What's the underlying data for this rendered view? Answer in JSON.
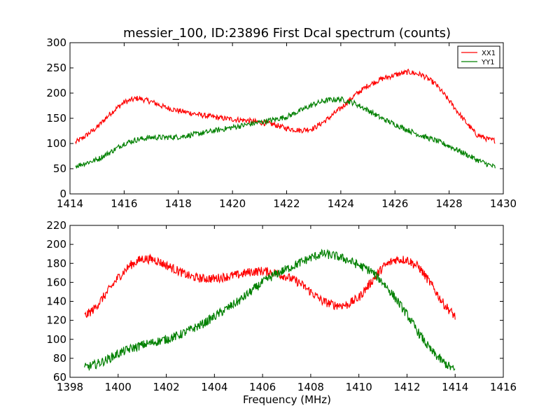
{
  "chart_data": [
    {
      "type": "line",
      "title": "messier_100, ID:23896 First Dcal spectrum (counts)",
      "xlabel": "",
      "ylabel": "",
      "xlim": [
        1414,
        1430
      ],
      "ylim": [
        0,
        300
      ],
      "xticks": [
        1414,
        1416,
        1418,
        1420,
        1422,
        1424,
        1426,
        1428,
        1430
      ],
      "yticks": [
        0,
        50,
        100,
        150,
        200,
        250,
        300
      ],
      "legend": "top-right",
      "grid": false,
      "series": [
        {
          "name": "XX1",
          "color": "#ff0000",
          "x": [
            1414.2,
            1414.5,
            1415.0,
            1415.5,
            1416.0,
            1416.5,
            1417.0,
            1417.5,
            1418.0,
            1418.5,
            1419.0,
            1419.5,
            1420.0,
            1420.5,
            1421.0,
            1421.5,
            1422.0,
            1422.5,
            1423.0,
            1423.5,
            1424.0,
            1424.5,
            1425.0,
            1425.5,
            1426.0,
            1426.5,
            1427.0,
            1427.5,
            1428.0,
            1428.5,
            1429.0,
            1429.5,
            1429.7
          ],
          "y": [
            102,
            112,
            132,
            160,
            182,
            190,
            183,
            172,
            165,
            160,
            155,
            151,
            148,
            146,
            142,
            138,
            130,
            126,
            130,
            148,
            170,
            195,
            215,
            228,
            236,
            242,
            236,
            218,
            185,
            150,
            118,
            107,
            106
          ]
        },
        {
          "name": "YY1",
          "color": "#008000",
          "x": [
            1414.2,
            1414.5,
            1415.0,
            1415.5,
            1416.0,
            1416.5,
            1417.0,
            1417.5,
            1418.0,
            1418.5,
            1419.0,
            1419.5,
            1420.0,
            1420.5,
            1421.0,
            1421.5,
            1422.0,
            1422.5,
            1423.0,
            1423.5,
            1424.0,
            1424.5,
            1425.0,
            1425.5,
            1426.0,
            1426.5,
            1427.0,
            1427.5,
            1428.0,
            1428.5,
            1429.0,
            1429.5,
            1429.7
          ],
          "y": [
            55,
            60,
            68,
            83,
            100,
            108,
            112,
            112,
            113,
            117,
            122,
            127,
            132,
            137,
            142,
            147,
            153,
            165,
            178,
            186,
            188,
            180,
            166,
            150,
            138,
            126,
            115,
            106,
            95,
            82,
            68,
            57,
            53
          ]
        }
      ]
    },
    {
      "type": "line",
      "title": "",
      "xlabel": "Frequency (MHz)",
      "ylabel": "",
      "xlim": [
        1398,
        1416
      ],
      "ylim": [
        60,
        220
      ],
      "xticks": [
        1398,
        1400,
        1402,
        1404,
        1406,
        1408,
        1410,
        1412,
        1414,
        1416
      ],
      "yticks": [
        60,
        80,
        100,
        120,
        140,
        160,
        180,
        200,
        220
      ],
      "grid": false,
      "series": [
        {
          "name": "XX1",
          "color": "#ff0000",
          "x": [
            1398.6,
            1399.0,
            1399.5,
            1400.0,
            1400.5,
            1401.0,
            1401.5,
            1402.0,
            1402.5,
            1403.0,
            1403.5,
            1404.0,
            1404.5,
            1405.0,
            1405.5,
            1406.0,
            1406.5,
            1407.0,
            1407.5,
            1408.0,
            1408.5,
            1409.0,
            1409.5,
            1410.0,
            1410.5,
            1411.0,
            1411.5,
            1412.0,
            1412.5,
            1413.0,
            1413.5,
            1414.0
          ],
          "y": [
            124,
            132,
            148,
            165,
            178,
            185,
            184,
            178,
            172,
            166,
            164,
            164,
            166,
            168,
            171,
            172,
            170,
            166,
            160,
            150,
            140,
            136,
            136,
            144,
            160,
            176,
            184,
            184,
            176,
            158,
            138,
            124
          ]
        },
        {
          "name": "YY1",
          "color": "#008000",
          "x": [
            1398.6,
            1399.0,
            1399.5,
            1400.0,
            1400.5,
            1401.0,
            1401.5,
            1402.0,
            1402.5,
            1403.0,
            1403.5,
            1404.0,
            1404.5,
            1405.0,
            1405.5,
            1406.0,
            1406.5,
            1407.0,
            1407.5,
            1408.0,
            1408.5,
            1409.0,
            1409.5,
            1410.0,
            1410.5,
            1411.0,
            1411.5,
            1412.0,
            1412.5,
            1413.0,
            1413.5,
            1414.0
          ],
          "y": [
            70,
            73,
            78,
            85,
            90,
            94,
            97,
            100,
            104,
            110,
            116,
            124,
            132,
            140,
            150,
            160,
            168,
            174,
            180,
            186,
            190,
            188,
            184,
            178,
            172,
            160,
            144,
            126,
            106,
            88,
            76,
            67
          ]
        }
      ]
    }
  ]
}
